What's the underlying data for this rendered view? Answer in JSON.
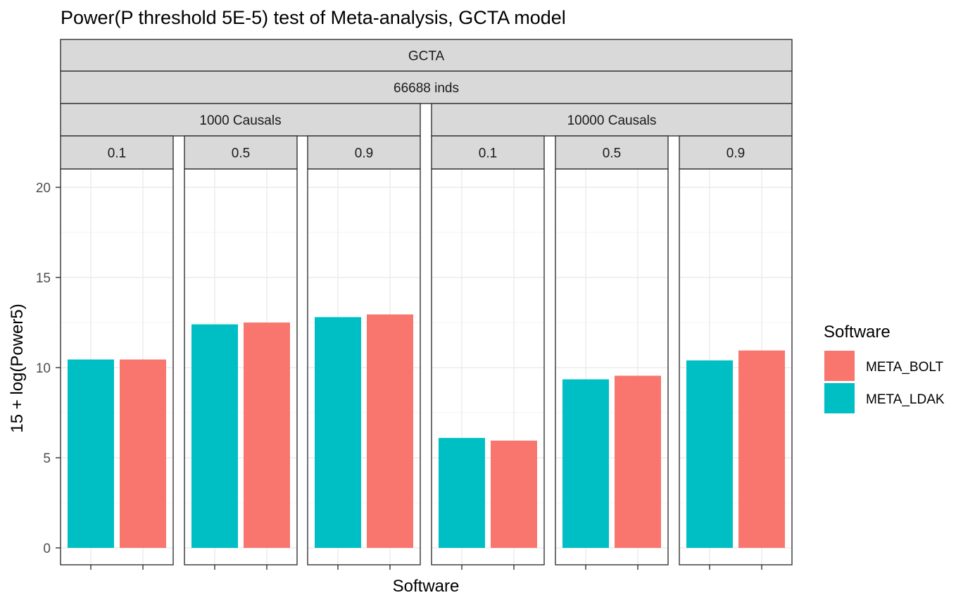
{
  "chart_data": {
    "type": "bar",
    "title": "Power(P threshold 5E-5) test of Meta-analysis, GCTA model",
    "xlabel": "Software",
    "ylabel": "15 + log(Power5)",
    "ylim": [
      0,
      21
    ],
    "yticks": [
      0,
      5,
      10,
      15,
      20
    ],
    "grid": true,
    "legend_position": "right",
    "legend": {
      "title": "Software",
      "items": [
        {
          "name": "META_BOLT",
          "color": "#F8766D"
        },
        {
          "name": "META_LDAK",
          "color": "#00BFC4"
        }
      ]
    },
    "strips": {
      "model": "GCTA",
      "sample": "66688 inds",
      "causal_groups": [
        {
          "label": "1000 Causals",
          "span": 3
        },
        {
          "label": "10000 Causals",
          "span": 3
        }
      ]
    },
    "categories": [
      "META_LDAK",
      "META_BOLT"
    ],
    "panels": [
      {
        "causal": "1000 Causals",
        "h2": "0.1",
        "values": {
          "META_LDAK": 10.45,
          "META_BOLT": 10.45
        }
      },
      {
        "causal": "1000 Causals",
        "h2": "0.5",
        "values": {
          "META_LDAK": 12.4,
          "META_BOLT": 12.5
        }
      },
      {
        "causal": "1000 Causals",
        "h2": "0.9",
        "values": {
          "META_LDAK": 12.8,
          "META_BOLT": 12.95
        }
      },
      {
        "causal": "10000 Causals",
        "h2": "0.1",
        "values": {
          "META_LDAK": 6.1,
          "META_BOLT": 5.95
        }
      },
      {
        "causal": "10000 Causals",
        "h2": "0.5",
        "values": {
          "META_LDAK": 9.35,
          "META_BOLT": 9.55
        }
      },
      {
        "causal": "10000 Causals",
        "h2": "0.9",
        "values": {
          "META_LDAK": 10.4,
          "META_BOLT": 10.95
        }
      }
    ]
  }
}
